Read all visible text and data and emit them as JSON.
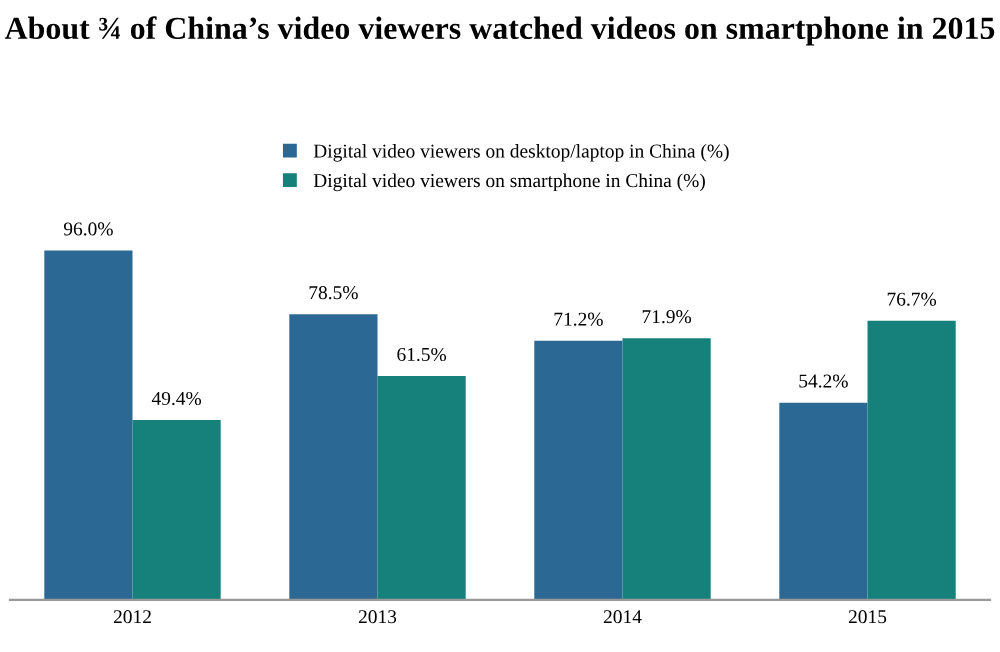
{
  "chart_data": {
    "type": "bar",
    "title": "About ¾ of China’s video viewers watched videos on smartphone in 2015",
    "categories": [
      "2012",
      "2013",
      "2014",
      "2015"
    ],
    "series": [
      {
        "name": "Digital video viewers on desktop/laptop in China (%)",
        "color": "#2b6893",
        "values": [
          96.0,
          78.5,
          71.2,
          54.2
        ],
        "value_labels": [
          "96.0%",
          "78.5%",
          "71.2%",
          "54.2%"
        ]
      },
      {
        "name": "Digital video viewers on smartphone in China (%)",
        "color": "#16807a",
        "values": [
          49.4,
          61.5,
          71.9,
          76.7
        ],
        "value_labels": [
          "49.4%",
          "61.5%",
          "71.9%",
          "76.7%"
        ]
      }
    ],
    "legend": "top",
    "grid": false
  }
}
